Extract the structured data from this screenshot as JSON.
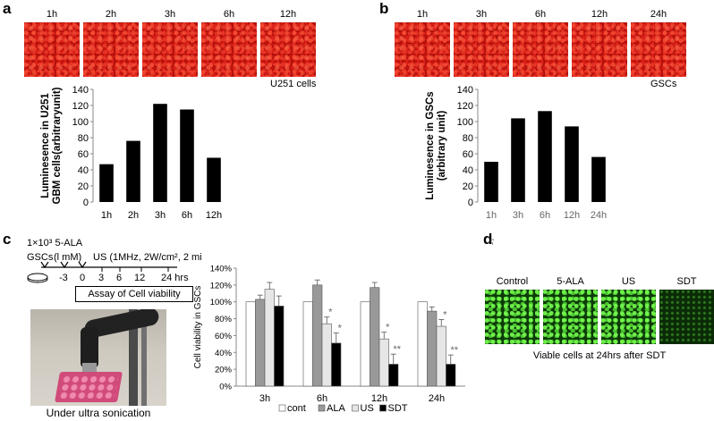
{
  "panel_a": {
    "letter": "a",
    "time_labels": [
      "1h",
      "2h",
      "3h",
      "6h",
      "12h"
    ],
    "cell_label": "U251 cells"
  },
  "panel_b": {
    "letter": "b",
    "time_labels": [
      "1h",
      "3h",
      "6h",
      "12h",
      "24h"
    ],
    "cell_label": "GSCs"
  },
  "panel_c": {
    "letter": "c",
    "protocol_line1": "1×10³ 5-ALA",
    "protocol_line2a": "GSCs",
    "protocol_line2b": "(l mM)",
    "protocol_line2c": "US (1MHz, 2W/cm², 2 mi",
    "timeline_ticks": [
      "-3",
      "0",
      "3",
      "6",
      "12",
      "24 hrs"
    ],
    "assay_label": "Assay of Cell viability",
    "photo_caption": "Under ultra sonication"
  },
  "panel_d": {
    "letter": "d",
    "stray_mark": "ʕ",
    "image_labels": [
      "Control",
      "5-ALA",
      "US",
      "SDT"
    ],
    "caption": "Viable cells at 24hrs after SDT"
  },
  "colors": {
    "bar": "#000000",
    "grey_light": "#e6e6e6",
    "grey_mid": "#999999"
  },
  "chart_data": [
    {
      "type": "bar",
      "title": "",
      "xlabel": "",
      "ylabel": "Luminesence in U251 GBM cells(arbitraryunit)",
      "categories": [
        "1h",
        "2h",
        "3h",
        "6h",
        "12h"
      ],
      "values": [
        47,
        76,
        122,
        115,
        55
      ],
      "ylim": [
        0,
        140
      ],
      "yticks": [
        "0",
        "20",
        "40",
        "60",
        "80",
        "100",
        "120",
        "140"
      ]
    },
    {
      "type": "bar",
      "title": "",
      "xlabel": "",
      "ylabel": "Luminesence in GSCs (arbitrary unit)",
      "categories": [
        "1h",
        "3h",
        "6h",
        "12h",
        "24h"
      ],
      "values": [
        50,
        104,
        113,
        94,
        56
      ],
      "ylim": [
        0,
        140
      ],
      "yticks": [
        "0",
        "20",
        "40",
        "60",
        "80",
        "100",
        "120",
        "140"
      ]
    },
    {
      "type": "bar",
      "title": "",
      "xlabel": "",
      "ylabel": "Cell viability in GSCs",
      "categories": [
        "3h",
        "6h",
        "12h",
        "24h"
      ],
      "series": [
        {
          "name": "cont",
          "values": [
            100,
            100,
            100,
            100
          ],
          "errors": [
            0,
            0,
            0,
            0
          ]
        },
        {
          "name": "ALA",
          "values": [
            103,
            120,
            117,
            89
          ],
          "errors": [
            5,
            6,
            6,
            5
          ]
        },
        {
          "name": "US",
          "values": [
            115,
            74,
            56,
            71
          ],
          "errors": [
            8,
            8,
            8,
            8
          ]
        },
        {
          "name": "SDT",
          "values": [
            95,
            51,
            26,
            26
          ],
          "errors": [
            12,
            12,
            12,
            11
          ]
        }
      ],
      "significance": {
        "6h_US": "*",
        "6h_SDT": "*",
        "12h_US": "*",
        "12h_SDT": "**",
        "24h_US": "*",
        "24h_SDT": "**"
      },
      "ylim": [
        0,
        140
      ],
      "yticks": [
        "0%",
        "20%",
        "40%",
        "60%",
        "80%",
        "100%",
        "120%",
        "140%"
      ]
    }
  ]
}
